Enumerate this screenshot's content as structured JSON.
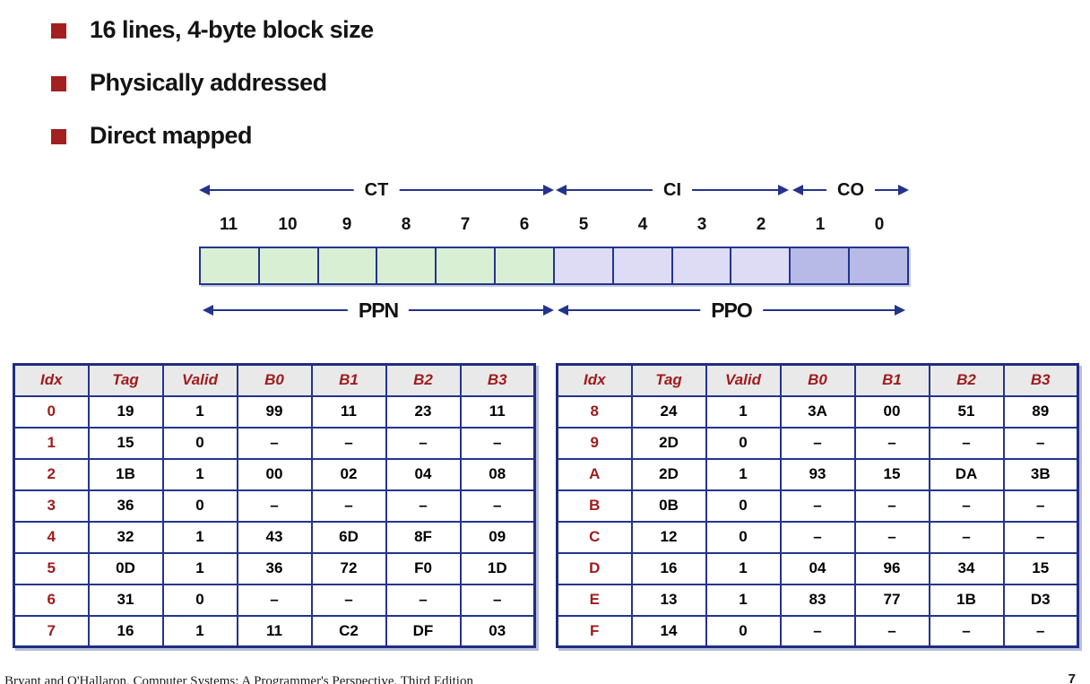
{
  "bullets": [
    {
      "label": "16 lines, 4-byte block size"
    },
    {
      "label": "Physically addressed"
    },
    {
      "label": "Direct mapped"
    }
  ],
  "diagram": {
    "top_fields": [
      {
        "label": "CT",
        "bits": "11-6"
      },
      {
        "label": "CI",
        "bits": "5-2"
      },
      {
        "label": "CO",
        "bits": "1-0"
      }
    ],
    "bit_labels": [
      "11",
      "10",
      "9",
      "8",
      "7",
      "6",
      "5",
      "4",
      "3",
      "2",
      "1",
      "0"
    ],
    "bottom_fields": [
      {
        "label": "PPN",
        "bits": "11-6"
      },
      {
        "label": "PPO",
        "bits": "5-0"
      }
    ],
    "cell_groups": [
      {
        "name": "ct",
        "count": 6,
        "color": "#d9efd4"
      },
      {
        "name": "ci",
        "count": 4,
        "color": "#dedcf5"
      },
      {
        "name": "co",
        "count": 2,
        "color": "#b7bae6"
      }
    ]
  },
  "tables": {
    "headers": [
      "Idx",
      "Tag",
      "Valid",
      "B0",
      "B1",
      "B2",
      "B3"
    ],
    "left": {
      "rows": [
        [
          "0",
          "19",
          "1",
          "99",
          "11",
          "23",
          "11"
        ],
        [
          "1",
          "15",
          "0",
          "–",
          "–",
          "–",
          "–"
        ],
        [
          "2",
          "1B",
          "1",
          "00",
          "02",
          "04",
          "08"
        ],
        [
          "3",
          "36",
          "0",
          "–",
          "–",
          "–",
          "–"
        ],
        [
          "4",
          "32",
          "1",
          "43",
          "6D",
          "8F",
          "09"
        ],
        [
          "5",
          "0D",
          "1",
          "36",
          "72",
          "F0",
          "1D"
        ],
        [
          "6",
          "31",
          "0",
          "–",
          "–",
          "–",
          "–"
        ],
        [
          "7",
          "16",
          "1",
          "11",
          "C2",
          "DF",
          "03"
        ]
      ]
    },
    "right": {
      "rows": [
        [
          "8",
          "24",
          "1",
          "3A",
          "00",
          "51",
          "89"
        ],
        [
          "9",
          "2D",
          "0",
          "–",
          "–",
          "–",
          "–"
        ],
        [
          "A",
          "2D",
          "1",
          "93",
          "15",
          "DA",
          "3B"
        ],
        [
          "B",
          "0B",
          "0",
          "–",
          "–",
          "–",
          "–"
        ],
        [
          "C",
          "12",
          "0",
          "–",
          "–",
          "–",
          "–"
        ],
        [
          "D",
          "16",
          "1",
          "04",
          "96",
          "34",
          "15"
        ],
        [
          "E",
          "13",
          "1",
          "83",
          "77",
          "1B",
          "D3"
        ],
        [
          "F",
          "14",
          "0",
          "–",
          "–",
          "–",
          "–"
        ]
      ]
    }
  },
  "footer": {
    "credit": "Bryant and O'Hallaron, Computer Systems: A Programmer's Perspective, Third Edition",
    "page_number": "7"
  },
  "colors": {
    "accent_red": "#9e1b1b",
    "bullet_red": "#a32020",
    "navy": "#24348c",
    "header_bg": "#e9e9e9",
    "ct_cell": "#d9efd4",
    "ci_cell": "#dedcf5",
    "co_cell": "#b7bae6"
  }
}
